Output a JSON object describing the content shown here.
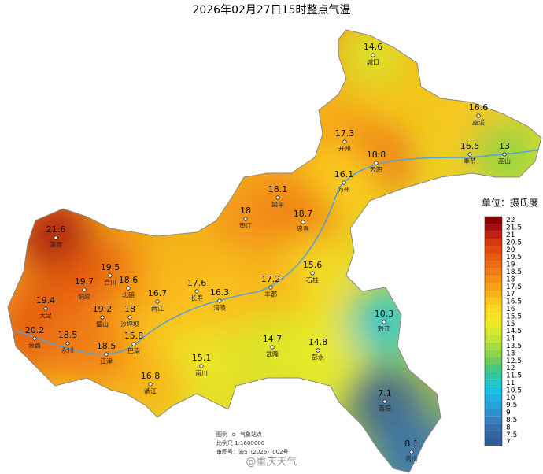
{
  "title": "2026年02月27日15时整点气温",
  "stations": [
    {
      "name": "城口",
      "value": 14.6
    },
    {
      "name": "巫溪",
      "value": 16.6
    },
    {
      "name": "开州",
      "value": 17.3
    },
    {
      "name": "云阳",
      "value": 18.8
    },
    {
      "name": "奉节",
      "value": 16.5
    },
    {
      "name": "巫山",
      "value": 13
    },
    {
      "name": "万州",
      "value": 16.1
    },
    {
      "name": "梁平",
      "value": 18.1
    },
    {
      "name": "垫江",
      "value": 18
    },
    {
      "name": "忠县",
      "value": 18.7
    },
    {
      "name": "潼南",
      "value": 21.6
    },
    {
      "name": "合川",
      "value": 19.5
    },
    {
      "name": "北碚",
      "value": 18.6
    },
    {
      "name": "铜梁",
      "value": 19.7
    },
    {
      "name": "石柱",
      "value": 15.6
    },
    {
      "name": "长寿",
      "value": 17.6
    },
    {
      "name": "两江",
      "value": 16.7
    },
    {
      "name": "涪陵",
      "value": 16.3
    },
    {
      "name": "丰都",
      "value": 17.2
    },
    {
      "name": "大足",
      "value": 19.4
    },
    {
      "name": "璧山",
      "value": 19.2
    },
    {
      "name": "沙坪坝",
      "value": 18
    },
    {
      "name": "黔江",
      "value": 10.3
    },
    {
      "name": "荣昌",
      "value": 20.2
    },
    {
      "name": "永川",
      "value": 18.5
    },
    {
      "name": "巴南",
      "value": 15.8
    },
    {
      "name": "江津",
      "value": 18.5
    },
    {
      "name": "武隆",
      "value": 14.7
    },
    {
      "name": "彭水",
      "value": 14.8
    },
    {
      "name": "南川",
      "value": 15.1
    },
    {
      "name": "綦江",
      "value": 16.8
    },
    {
      "name": "酉阳",
      "value": 7.1
    },
    {
      "name": "秀山",
      "value": 8.1
    }
  ],
  "legend": {
    "unit": "单位：摄氏度",
    "levels": [
      {
        "value": 22,
        "color": "#8b0000"
      },
      {
        "value": 21.5,
        "color": "#a50f0f"
      },
      {
        "value": 21,
        "color": "#c0200f"
      },
      {
        "value": 20.5,
        "color": "#d33a10"
      },
      {
        "value": 20,
        "color": "#e04a10"
      },
      {
        "value": 19.5,
        "color": "#e65a12"
      },
      {
        "value": 19,
        "color": "#eb6a14"
      },
      {
        "value": 18.5,
        "color": "#f07c14"
      },
      {
        "value": 18,
        "color": "#f38e16"
      },
      {
        "value": 17.5,
        "color": "#f6a018"
      },
      {
        "value": 17,
        "color": "#f8b31a"
      },
      {
        "value": 16.5,
        "color": "#fbc51c"
      },
      {
        "value": 16,
        "color": "#fcd720"
      },
      {
        "value": 15.5,
        "color": "#f6e224"
      },
      {
        "value": 15,
        "color": "#eaea28"
      },
      {
        "value": 14.5,
        "color": "#d8e82c"
      },
      {
        "value": 14,
        "color": "#c2e234"
      },
      {
        "value": 13.5,
        "color": "#a8dc3c"
      },
      {
        "value": 13,
        "color": "#8cd448"
      },
      {
        "value": 12.5,
        "color": "#6ccc5c"
      },
      {
        "value": 12,
        "color": "#4cc678"
      },
      {
        "value": 11.5,
        "color": "#34c4a0"
      },
      {
        "value": 11,
        "color": "#24c4c8"
      },
      {
        "value": 10.5,
        "color": "#1cc0e0"
      },
      {
        "value": 10,
        "color": "#22b0e0"
      },
      {
        "value": 9.5,
        "color": "#2aa0d8"
      },
      {
        "value": 9,
        "color": "#3090cc"
      },
      {
        "value": 8.5,
        "color": "#3480c0"
      },
      {
        "value": 8,
        "color": "#3470b0"
      },
      {
        "value": 7.5,
        "color": "#3464a4"
      },
      {
        "value": 7,
        "color": "#345a98"
      }
    ]
  },
  "notes": {
    "legend_label": "图例",
    "legend_item": "气象站点",
    "scale": "比例尺 1:1600000",
    "approval": "审图号：渝S（2026）002号"
  },
  "watermark": "@重庆天气"
}
